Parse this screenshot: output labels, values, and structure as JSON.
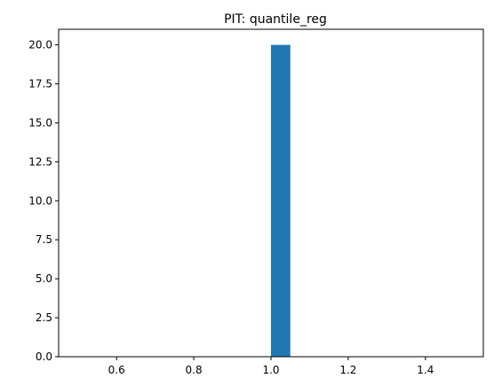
{
  "chart_data": {
    "type": "bar",
    "title": "PIT: quantile_reg",
    "xlabel": "",
    "ylabel": "",
    "bars": [
      {
        "x0": 1.0,
        "x1": 1.05,
        "value": 20
      }
    ],
    "xlim": [
      0.45,
      1.55
    ],
    "ylim": [
      0,
      21
    ],
    "xticks": [
      0.6,
      0.8,
      1.0,
      1.2,
      1.4
    ],
    "xtick_labels": [
      "0.6",
      "0.8",
      "1.0",
      "1.2",
      "1.4"
    ],
    "yticks": [
      0,
      2.5,
      5,
      7.5,
      10,
      12.5,
      15,
      17.5,
      20
    ],
    "ytick_labels": [
      "0.0",
      "2.5",
      "5.0",
      "7.5",
      "10.0",
      "12.5",
      "15.0",
      "17.5",
      "20.0"
    ],
    "bar_color": "#1f77b4",
    "grid": false
  }
}
